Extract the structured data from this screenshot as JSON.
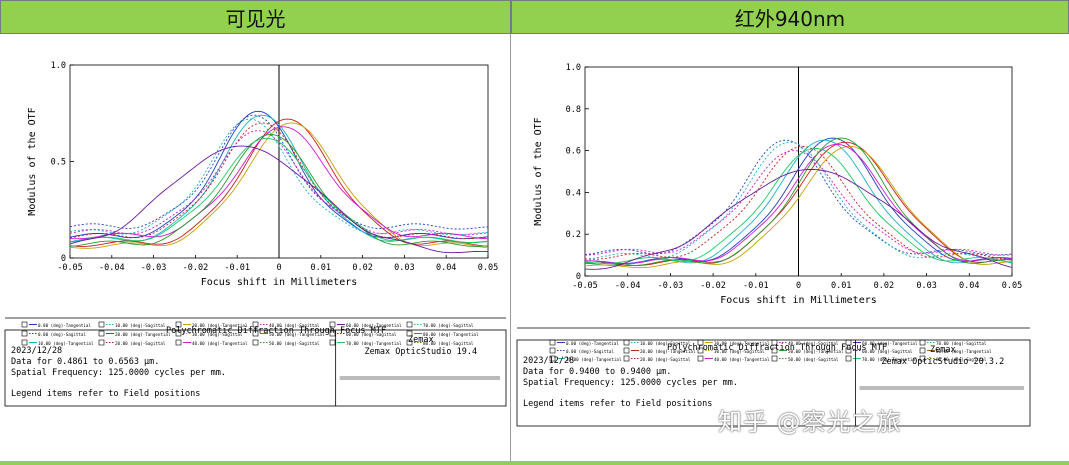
{
  "headers": {
    "left": "可见光",
    "right": "红外940nm"
  },
  "colors": {
    "header_bg": "#92d050"
  },
  "watermark": "知乎 @察光之旅",
  "chart_data": [
    {
      "type": "line",
      "id": "visible",
      "title": "Polychromatic Diffraction Through Focus MTF",
      "xlabel": "Focus shift in Millimeters",
      "ylabel": "Modulus of the OTF",
      "xlim": [
        -0.05,
        0.05
      ],
      "ylim": [
        0,
        1
      ],
      "xticks": [
        "-0.05",
        "-0.04",
        "-0.03",
        "-0.02",
        "-0.01",
        "0",
        "0.01",
        "0.02",
        "0.03",
        "0.04",
        "0.05"
      ],
      "yticks": [
        "0",
        "0.5",
        "1.0"
      ],
      "legend": [
        {
          "name": "0.00 (deg)-Tangential",
          "color": "#1f3fbf",
          "dash": false
        },
        {
          "name": "0.00 (deg)-Sagittal",
          "color": "#1f3fbf",
          "dash": true
        },
        {
          "name": "10.00 (deg)-Tangential",
          "color": "#16b3c4",
          "dash": false
        },
        {
          "name": "10.00 (deg)-Sagittal",
          "color": "#16b3c4",
          "dash": true
        },
        {
          "name": "20.00 (deg)-Tangential",
          "color": "#c81e1e",
          "dash": false
        },
        {
          "name": "20.00 (deg)-Sagittal",
          "color": "#c81e1e",
          "dash": true
        },
        {
          "name": "30.00 (deg)-Tangential",
          "color": "#c8a000",
          "dash": false
        },
        {
          "name": "30.00 (deg)-Sagittal",
          "color": "#c8a000",
          "dash": true
        },
        {
          "name": "40.00 (deg)-Tangential",
          "color": "#d018d0",
          "dash": false
        },
        {
          "name": "40.00 (deg)-Sagittal",
          "color": "#d018d0",
          "dash": true
        },
        {
          "name": "50.00 (deg)-Tangential",
          "color": "#2a9a2a",
          "dash": false
        },
        {
          "name": "50.00 (deg)-Sagittal",
          "color": "#2a9a2a",
          "dash": true
        },
        {
          "name": "60.00 (deg)-Tangential",
          "color": "#6a1a9a",
          "dash": false
        },
        {
          "name": "60.00 (deg)-Sagittal",
          "color": "#6a1a9a",
          "dash": true
        },
        {
          "name": "70.00 (deg)-Tangential",
          "color": "#20c860",
          "dash": false
        },
        {
          "name": "70.00 (deg)-Sagittal",
          "color": "#20c860",
          "dash": true
        },
        {
          "name": "80.00 (deg)-Tangential",
          "color": "#9a6a00",
          "dash": false
        },
        {
          "name": "80.00 (deg)-Sagittal",
          "color": "#9a6a00",
          "dash": true
        }
      ],
      "series": [
        {
          "color": "#1f3fbf",
          "dash": false,
          "peak_x": -0.005,
          "peak_y": 0.76,
          "width": 0.0135,
          "floor": 0.1
        },
        {
          "color": "#1f3fbf",
          "dash": true,
          "peak_x": -0.006,
          "peak_y": 0.74,
          "width": 0.013,
          "floor": 0.15
        },
        {
          "color": "#16b3c4",
          "dash": false,
          "peak_x": -0.004,
          "peak_y": 0.74,
          "width": 0.014,
          "floor": 0.08
        },
        {
          "color": "#16b3c4",
          "dash": true,
          "peak_x": -0.007,
          "peak_y": 0.72,
          "width": 0.0135,
          "floor": 0.12
        },
        {
          "color": "#c81e1e",
          "dash": false,
          "peak_x": 0.002,
          "peak_y": 0.72,
          "width": 0.015,
          "floor": 0.06
        },
        {
          "color": "#c81e1e",
          "dash": true,
          "peak_x": -0.004,
          "peak_y": 0.7,
          "width": 0.014,
          "floor": 0.1
        },
        {
          "color": "#c8a000",
          "dash": false,
          "peak_x": 0.003,
          "peak_y": 0.7,
          "width": 0.0155,
          "floor": 0.05
        },
        {
          "color": "#d018d0",
          "dash": false,
          "peak_x": 0.001,
          "peak_y": 0.68,
          "width": 0.015,
          "floor": 0.1
        },
        {
          "color": "#d018d0",
          "dash": true,
          "peak_x": -0.005,
          "peak_y": 0.66,
          "width": 0.014,
          "floor": 0.12
        },
        {
          "color": "#2a9a2a",
          "dash": false,
          "peak_x": -0.002,
          "peak_y": 0.64,
          "width": 0.0145,
          "floor": 0.06
        },
        {
          "color": "#20c860",
          "dash": false,
          "peak_x": -0.003,
          "peak_y": 0.62,
          "width": 0.015,
          "floor": 0.08
        },
        {
          "color": "#6a1a9a",
          "dash": false,
          "peak_x": -0.009,
          "peak_y": 0.58,
          "width": 0.024,
          "floor": 0.02
        }
      ],
      "info": {
        "date": "2023/12/28",
        "data_for": "Data for 0.4861 to 0.6563 µm.",
        "spatial_freq": "Spatial Frequency: 125.0000 cycles per mm.",
        "legend_note": "Legend items refer to Field positions",
        "brand": "Zemax",
        "product": "Zemax OpticStudio 19.4"
      }
    },
    {
      "type": "line",
      "id": "infrared",
      "title": "Polychromatic Diffraction Through Focus MTF",
      "xlabel": "Focus shift in Millimeters",
      "ylabel": "Modulus of the OTF",
      "xlim": [
        -0.05,
        0.05
      ],
      "ylim": [
        0,
        1
      ],
      "xticks": [
        "-0.05",
        "-0.04",
        "-0.03",
        "-0.02",
        "-0.01",
        "0",
        "0.01",
        "0.02",
        "0.03",
        "0.04",
        "0.05"
      ],
      "yticks": [
        "0",
        "0.2",
        "0.4",
        "0.6",
        "0.8",
        "1.0"
      ],
      "legend": [
        {
          "name": "0.00 (deg)-Tangential",
          "color": "#1f3fbf",
          "dash": false
        },
        {
          "name": "0.00 (deg)-Sagittal",
          "color": "#1f3fbf",
          "dash": true
        },
        {
          "name": "10.00 (deg)-Tangential",
          "color": "#16b3c4",
          "dash": false
        },
        {
          "name": "10.00 (deg)-Sagittal",
          "color": "#16b3c4",
          "dash": true
        },
        {
          "name": "20.00 (deg)-Tangential",
          "color": "#c81e1e",
          "dash": false
        },
        {
          "name": "20.00 (deg)-Sagittal",
          "color": "#c81e1e",
          "dash": true
        },
        {
          "name": "30.00 (deg)-Tangential",
          "color": "#c8a000",
          "dash": false
        },
        {
          "name": "30.00 (deg)-Sagittal",
          "color": "#c8a000",
          "dash": true
        },
        {
          "name": "40.00 (deg)-Tangential",
          "color": "#d018d0",
          "dash": false
        },
        {
          "name": "40.00 (deg)-Sagittal",
          "color": "#d018d0",
          "dash": true
        },
        {
          "name": "50.00 (deg)-Tangential",
          "color": "#2a9a2a",
          "dash": false
        },
        {
          "name": "50.00 (deg)-Sagittal",
          "color": "#2a9a2a",
          "dash": true
        },
        {
          "name": "60.00 (deg)-Tangential",
          "color": "#6a1a9a",
          "dash": false
        },
        {
          "name": "60.00 (deg)-Sagittal",
          "color": "#6a1a9a",
          "dash": true
        },
        {
          "name": "70.00 (deg)-Tangential",
          "color": "#20c860",
          "dash": false
        },
        {
          "name": "70.00 (deg)-Sagittal",
          "color": "#20c860",
          "dash": true
        },
        {
          "name": "80.00 (deg)-Tangential",
          "color": "#9a6a00",
          "dash": false
        },
        {
          "name": "80.00 (deg)-Sagittal",
          "color": "#9a6a00",
          "dash": true
        }
      ],
      "series": [
        {
          "color": "#1f3fbf",
          "dash": false,
          "peak_x": 0.008,
          "peak_y": 0.66,
          "width": 0.015,
          "floor": 0.06
        },
        {
          "color": "#1f3fbf",
          "dash": true,
          "peak_x": -0.003,
          "peak_y": 0.65,
          "width": 0.014,
          "floor": 0.1
        },
        {
          "color": "#16b3c4",
          "dash": false,
          "peak_x": 0.006,
          "peak_y": 0.65,
          "width": 0.0155,
          "floor": 0.05
        },
        {
          "color": "#16b3c4",
          "dash": true,
          "peak_x": -0.002,
          "peak_y": 0.64,
          "width": 0.0145,
          "floor": 0.08
        },
        {
          "color": "#c81e1e",
          "dash": false,
          "peak_x": 0.011,
          "peak_y": 0.64,
          "width": 0.016,
          "floor": 0.05
        },
        {
          "color": "#c81e1e",
          "dash": true,
          "peak_x": 0.001,
          "peak_y": 0.62,
          "width": 0.015,
          "floor": 0.08
        },
        {
          "color": "#c8a000",
          "dash": false,
          "peak_x": 0.012,
          "peak_y": 0.62,
          "width": 0.016,
          "floor": 0.04
        },
        {
          "color": "#d018d0",
          "dash": false,
          "peak_x": 0.009,
          "peak_y": 0.63,
          "width": 0.0155,
          "floor": 0.06
        },
        {
          "color": "#d018d0",
          "dash": true,
          "peak_x": -0.001,
          "peak_y": 0.6,
          "width": 0.015,
          "floor": 0.1
        },
        {
          "color": "#2a9a2a",
          "dash": false,
          "peak_x": 0.01,
          "peak_y": 0.66,
          "width": 0.015,
          "floor": 0.05
        },
        {
          "color": "#20c860",
          "dash": false,
          "peak_x": 0.004,
          "peak_y": 0.61,
          "width": 0.0155,
          "floor": 0.06
        },
        {
          "color": "#6a1a9a",
          "dash": false,
          "peak_x": 0.003,
          "peak_y": 0.51,
          "width": 0.026,
          "floor": 0.02
        }
      ],
      "info": {
        "date": "2023/12/28",
        "data_for": "Data for 0.9400 to 0.9400 µm.",
        "spatial_freq": "Spatial Frequency: 125.0000 cycles per mm.",
        "legend_note": "Legend items refer to Field positions",
        "brand": "Zemax",
        "product": "Zemax OpticStudio 20.3.2"
      }
    }
  ]
}
